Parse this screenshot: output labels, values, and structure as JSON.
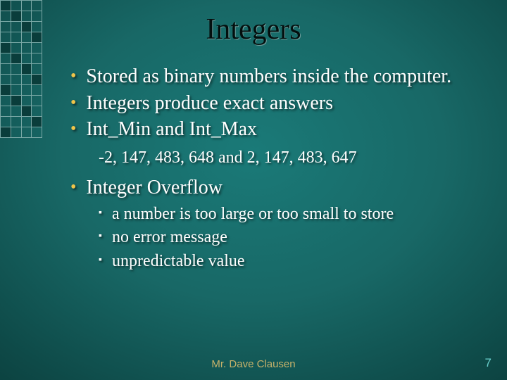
{
  "slide": {
    "title": "Integers",
    "footer": "Mr. Dave Clausen",
    "page_number": "7",
    "bullets": [
      {
        "text": "Stored as binary numbers inside the computer."
      },
      {
        "text": "Integers produce exact answers"
      },
      {
        "text": "Int_Min  and Int_Max"
      }
    ],
    "sub_text": "-2, 147, 483, 648 and 2, 147, 483, 647",
    "bullet_overflow": "Integer Overflow",
    "sub_bullets": [
      "a number is too large or too small to store",
      "no error message",
      "unpredictable value"
    ]
  },
  "style": {
    "title_color": "#030f0e",
    "text_color": "#fefefe",
    "bullet_dot_color": "#f0c54a",
    "footer_color": "#c7b26a",
    "pagenum_color": "#69d0cc",
    "title_fontsize": 42,
    "body_fontsize": 28,
    "sub_fontsize": 24,
    "background_gradient": [
      "#1a7a78",
      "#0e4a48",
      "#031b1a"
    ],
    "grid_border": "#7aa8a6",
    "grid_fill": "#0a3d3b"
  }
}
